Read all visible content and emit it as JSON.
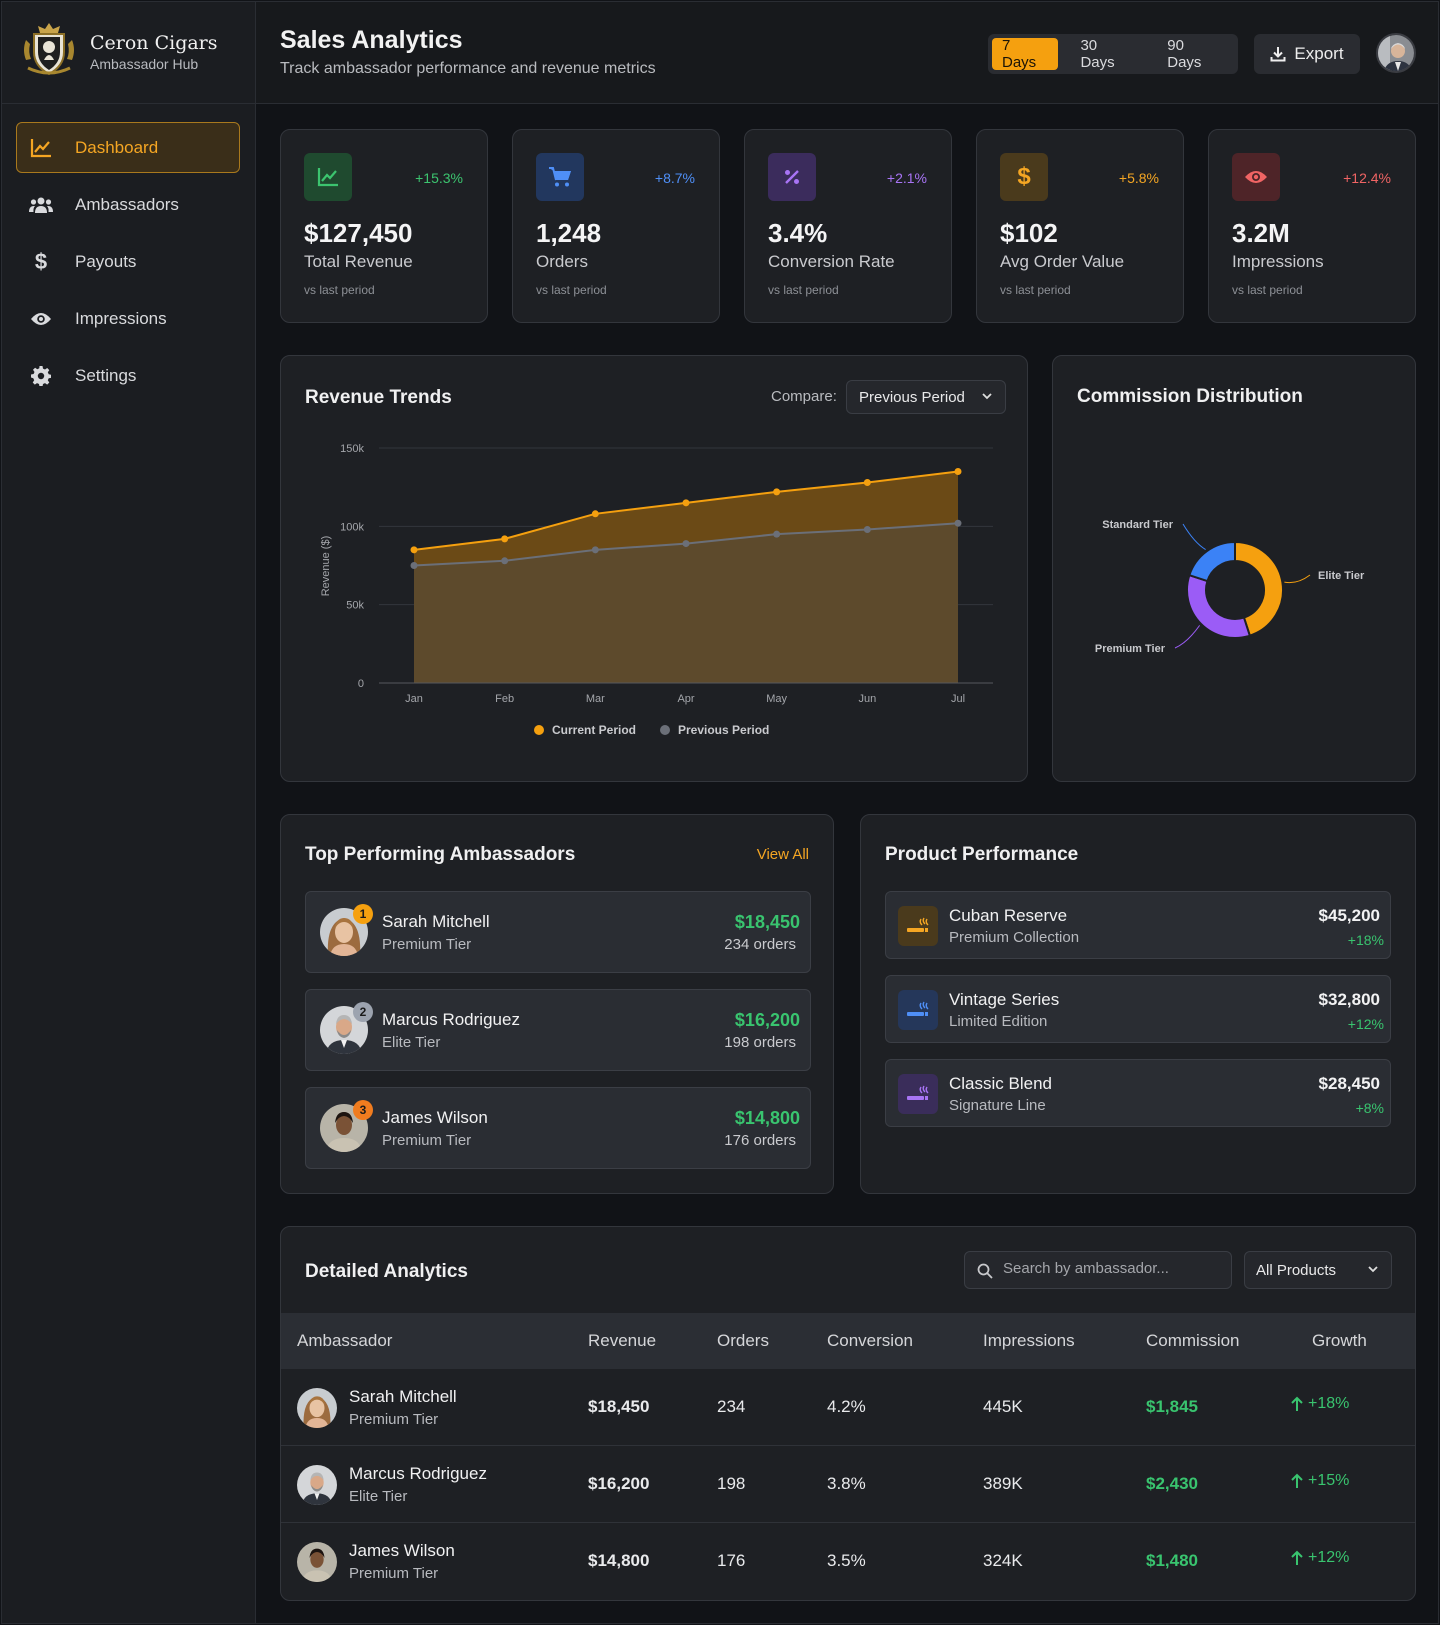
{
  "brand": {
    "name": "Ceron Cigars",
    "subtitle": "Ambassador Hub"
  },
  "nav": [
    {
      "label": "Dashboard",
      "icon": "chart-line-icon",
      "active": true
    },
    {
      "label": "Ambassadors",
      "icon": "users-icon",
      "active": false
    },
    {
      "label": "Payouts",
      "icon": "dollar-icon",
      "active": false
    },
    {
      "label": "Impressions",
      "icon": "eye-icon",
      "active": false
    },
    {
      "label": "Settings",
      "icon": "gear-icon",
      "active": false
    }
  ],
  "header": {
    "title": "Sales Analytics",
    "subtitle": "Track ambassador performance and revenue metrics",
    "ranges": [
      "7 Days",
      "30 Days",
      "90 Days"
    ],
    "active_range": "7 Days",
    "export_label": "Export"
  },
  "stats": [
    {
      "value": "$127,450",
      "label": "Total Revenue",
      "delta": "+15.3%",
      "note": "vs last period",
      "icon": "trend-chart-icon",
      "color": "#3cc46f"
    },
    {
      "value": "1,248",
      "label": "Orders",
      "delta": "+8.7%",
      "note": "vs last period",
      "icon": "cart-icon",
      "color": "#4f8ff7"
    },
    {
      "value": "3.4%",
      "label": "Conversion Rate",
      "delta": "+2.1%",
      "note": "vs last period",
      "icon": "percent-icon",
      "color": "#a874f5"
    },
    {
      "value": "$102",
      "label": "Avg Order Value",
      "delta": "+5.8%",
      "note": "vs last period",
      "icon": "dollar-icon",
      "color": "#f5a623"
    },
    {
      "value": "3.2M",
      "label": "Impressions",
      "delta": "+12.4%",
      "note": "vs last period",
      "icon": "eye-icon",
      "color": "#f06464"
    }
  ],
  "revenue": {
    "title": "Revenue Trends",
    "compare_label": "Compare:",
    "compare_value": "Previous Period"
  },
  "commission": {
    "title": "Commission Distribution"
  },
  "chart_data": [
    {
      "type": "area",
      "title": "Revenue Trends",
      "xlabel": "",
      "ylabel": "Revenue ($)",
      "categories": [
        "Jan",
        "Feb",
        "Mar",
        "Apr",
        "May",
        "Jun",
        "Jul"
      ],
      "y_ticks": [
        "0",
        "50k",
        "100k",
        "150k"
      ],
      "ylim": [
        0,
        150000
      ],
      "grid": true,
      "legend": "bottom",
      "series": [
        {
          "name": "Current Period",
          "color": "#f5a00f",
          "values": [
            85000,
            92000,
            108000,
            115000,
            122000,
            128000,
            135000
          ]
        },
        {
          "name": "Previous Period",
          "color": "#6b6f78",
          "values": [
            75000,
            78000,
            85000,
            89000,
            95000,
            98000,
            102000
          ]
        }
      ]
    },
    {
      "type": "pie",
      "title": "Commission Distribution",
      "donut": true,
      "slices": [
        {
          "name": "Elite Tier",
          "value": 45,
          "color": "#f5a00f"
        },
        {
          "name": "Premium Tier",
          "value": 35,
          "color": "#9b5cf6"
        },
        {
          "name": "Standard Tier",
          "value": 20,
          "color": "#3b82f6"
        }
      ]
    }
  ],
  "top_ambassadors": {
    "title": "Top Performing Ambassadors",
    "view_all": "View All",
    "items": [
      {
        "rank": "1",
        "name": "Sarah Mitchell",
        "tier": "Premium Tier",
        "revenue": "$18,450",
        "orders": "234 orders",
        "rank_color": "#f5a00f"
      },
      {
        "rank": "2",
        "name": "Marcus Rodriguez",
        "tier": "Elite Tier",
        "revenue": "$16,200",
        "orders": "198 orders",
        "rank_color": "#9ca3af"
      },
      {
        "rank": "3",
        "name": "James Wilson",
        "tier": "Premium Tier",
        "revenue": "$14,800",
        "orders": "176 orders",
        "rank_color": "#f07c1f"
      }
    ]
  },
  "products": {
    "title": "Product Performance",
    "items": [
      {
        "name": "Cuban Reserve",
        "line": "Premium Collection",
        "revenue": "$45,200",
        "delta": "+18%",
        "color": "#f5a623",
        "bg": "#4a3a1c"
      },
      {
        "name": "Vintage Series",
        "line": "Limited Edition",
        "revenue": "$32,800",
        "delta": "+12%",
        "color": "#4f8ff7",
        "bg": "#25375a"
      },
      {
        "name": "Classic Blend",
        "line": "Signature Line",
        "revenue": "$28,450",
        "delta": "+8%",
        "color": "#a874f5",
        "bg": "#3a2d5a"
      }
    ]
  },
  "table": {
    "title": "Detailed Analytics",
    "search_placeholder": "Search by ambassador...",
    "filter_value": "All Products",
    "columns": [
      "Ambassador",
      "Revenue",
      "Orders",
      "Conversion",
      "Impressions",
      "Commission",
      "Growth"
    ],
    "rows": [
      {
        "name": "Sarah Mitchell",
        "tier": "Premium Tier",
        "revenue": "$18,450",
        "orders": "234",
        "conversion": "4.2%",
        "impressions": "445K",
        "commission": "$1,845",
        "growth": "+18%"
      },
      {
        "name": "Marcus Rodriguez",
        "tier": "Elite Tier",
        "revenue": "$16,200",
        "orders": "198",
        "conversion": "3.8%",
        "impressions": "389K",
        "commission": "$2,430",
        "growth": "+15%"
      },
      {
        "name": "James Wilson",
        "tier": "Premium Tier",
        "revenue": "$14,800",
        "orders": "176",
        "conversion": "3.5%",
        "impressions": "324K",
        "commission": "$1,480",
        "growth": "+12%"
      }
    ]
  }
}
